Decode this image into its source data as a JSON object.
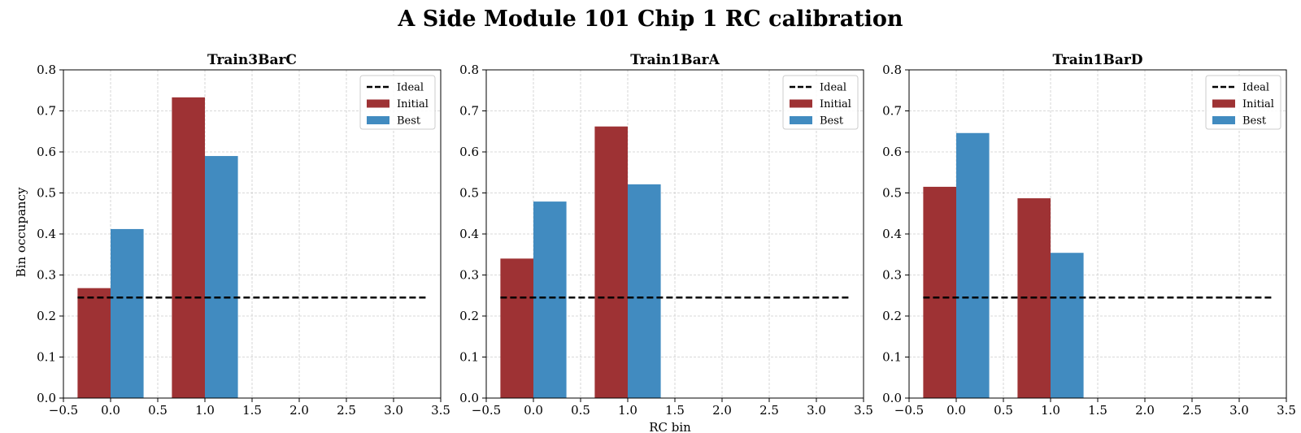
{
  "figure": {
    "title": "A Side Module 101 Chip 1 RC calibration",
    "xlabel": "RC bin",
    "ylabel": "Bin occupancy"
  },
  "colors": {
    "initial": "#9e3234",
    "best": "#418bc0",
    "ideal": "#000000",
    "grid": "#cccccc"
  },
  "chart_data": [
    {
      "type": "bar",
      "title": "Train3BarC",
      "xlim": [
        -0.5,
        3.5
      ],
      "ylim": [
        0,
        0.8
      ],
      "xticks": [
        -0.5,
        0.0,
        0.5,
        1.0,
        1.5,
        2.0,
        2.5,
        3.0,
        3.5
      ],
      "xtick_labels": [
        "−0.5",
        "0.0",
        "0.5",
        "1.0",
        "1.5",
        "2.0",
        "2.5",
        "3.0",
        "3.5"
      ],
      "yticks": [
        0.0,
        0.1,
        0.2,
        0.3,
        0.4,
        0.5,
        0.6,
        0.7,
        0.8
      ],
      "ytick_labels": [
        "0.0",
        "0.1",
        "0.2",
        "0.3",
        "0.4",
        "0.5",
        "0.6",
        "0.7",
        "0.8"
      ],
      "grid": true,
      "legend": "top-right",
      "bar_width": 0.35,
      "ideal": {
        "name": "Ideal",
        "y": 0.245,
        "x_range": [
          -0.35,
          3.35
        ]
      },
      "series": [
        {
          "name": "Initial",
          "x": [
            0,
            1
          ],
          "values": [
            0.268,
            0.733
          ]
        },
        {
          "name": "Best",
          "x": [
            0,
            1
          ],
          "values": [
            0.412,
            0.59
          ]
        }
      ]
    },
    {
      "type": "bar",
      "title": "Train1BarA",
      "xlim": [
        -0.5,
        3.5
      ],
      "ylim": [
        0,
        0.8
      ],
      "xticks": [
        -0.5,
        0.0,
        0.5,
        1.0,
        1.5,
        2.0,
        2.5,
        3.0,
        3.5
      ],
      "xtick_labels": [
        "−0.5",
        "0.0",
        "0.5",
        "1.0",
        "1.5",
        "2.0",
        "2.5",
        "3.0",
        "3.5"
      ],
      "yticks": [
        0.0,
        0.1,
        0.2,
        0.3,
        0.4,
        0.5,
        0.6,
        0.7,
        0.8
      ],
      "ytick_labels": [
        "0.0",
        "0.1",
        "0.2",
        "0.3",
        "0.4",
        "0.5",
        "0.6",
        "0.7",
        "0.8"
      ],
      "grid": true,
      "legend": "top-right",
      "bar_width": 0.35,
      "ideal": {
        "name": "Ideal",
        "y": 0.245,
        "x_range": [
          -0.35,
          3.35
        ]
      },
      "series": [
        {
          "name": "Initial",
          "x": [
            0,
            1
          ],
          "values": [
            0.34,
            0.662
          ]
        },
        {
          "name": "Best",
          "x": [
            0,
            1
          ],
          "values": [
            0.479,
            0.521
          ]
        }
      ]
    },
    {
      "type": "bar",
      "title": "Train1BarD",
      "xlim": [
        -0.5,
        3.5
      ],
      "ylim": [
        0,
        0.8
      ],
      "xticks": [
        -0.5,
        0.0,
        0.5,
        1.0,
        1.5,
        2.0,
        2.5,
        3.0,
        3.5
      ],
      "xtick_labels": [
        "−0.5",
        "0.0",
        "0.5",
        "1.0",
        "1.5",
        "2.0",
        "2.5",
        "3.0",
        "3.5"
      ],
      "yticks": [
        0.0,
        0.1,
        0.2,
        0.3,
        0.4,
        0.5,
        0.6,
        0.7,
        0.8
      ],
      "ytick_labels": [
        "0.0",
        "0.1",
        "0.2",
        "0.3",
        "0.4",
        "0.5",
        "0.6",
        "0.7",
        "0.8"
      ],
      "grid": true,
      "legend": "top-right",
      "bar_width": 0.35,
      "ideal": {
        "name": "Ideal",
        "y": 0.245,
        "x_range": [
          -0.35,
          3.35
        ]
      },
      "series": [
        {
          "name": "Initial",
          "x": [
            0,
            1
          ],
          "values": [
            0.515,
            0.487
          ]
        },
        {
          "name": "Best",
          "x": [
            0,
            1
          ],
          "values": [
            0.646,
            0.354
          ]
        }
      ]
    }
  ]
}
